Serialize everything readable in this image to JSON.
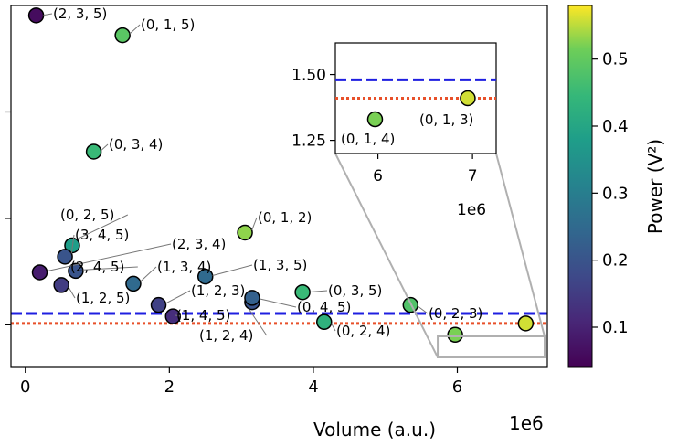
{
  "chart_data": {
    "type": "scatter",
    "xlabel": "Volume (a.u.)",
    "x_offset_text": "1e6",
    "xlim": [
      -200000,
      7250000
    ],
    "x_ticks": [
      0,
      2000000,
      4000000,
      6000000
    ],
    "x_tick_labels": [
      "0",
      "2",
      "4",
      "6"
    ],
    "ylim": [
      1.1,
      3.65
    ],
    "y_ticks": [
      1.4,
      2.15,
      2.9
    ],
    "colorbar": {
      "label": "Power (V²)",
      "range": [
        0.04,
        0.58
      ],
      "ticks": [
        0.1,
        0.2,
        0.3,
        0.4,
        0.5
      ],
      "tick_labels": [
        "0.1",
        "0.2",
        "0.3",
        "0.4",
        "0.5"
      ],
      "colormap": "viridis"
    },
    "reference_lines": [
      {
        "style": "dashed",
        "color": "#1f1fe0",
        "y": 1.48
      },
      {
        "style": "dotted",
        "color": "#e8502a",
        "y": 1.41
      }
    ],
    "points": [
      {
        "label": "(2, 3, 5)",
        "x": 150000,
        "y": 3.58,
        "power": 0.06
      },
      {
        "label": "(0, 1, 5)",
        "x": 1350000,
        "y": 3.44,
        "power": 0.49
      },
      {
        "label": "(0, 3, 4)",
        "x": 950000,
        "y": 2.62,
        "power": 0.45
      },
      {
        "label": "(0, 1, 2)",
        "x": 3050000,
        "y": 2.05,
        "power": 0.53
      },
      {
        "label": "(0, 2, 5)",
        "x": 650000,
        "y": 1.96,
        "power": 0.38
      },
      {
        "label": "(3, 4, 5)",
        "x": 550000,
        "y": 1.88,
        "power": 0.2
      },
      {
        "label": "(2, 3, 4)",
        "x": 200000,
        "y": 1.77,
        "power": 0.09
      },
      {
        "label": "(2, 4, 5)",
        "x": 700000,
        "y": 1.78,
        "power": 0.2
      },
      {
        "label": "(1, 2, 5)",
        "x": 500000,
        "y": 1.68,
        "power": 0.15
      },
      {
        "label": "(1, 3, 4)",
        "x": 1500000,
        "y": 1.69,
        "power": 0.25
      },
      {
        "label": "(1, 3, 5)",
        "x": 2500000,
        "y": 1.74,
        "power": 0.25
      },
      {
        "label": "(1, 2, 3)",
        "x": 1850000,
        "y": 1.54,
        "power": 0.16
      },
      {
        "label": "(1, 4, 5)",
        "x": 2050000,
        "y": 1.46,
        "power": 0.12
      },
      {
        "label": "(1, 2, 4)",
        "x": 3150000,
        "y": 1.56,
        "power": 0.2
      },
      {
        "label": "(0, 4, 5)",
        "x": 3150000,
        "y": 1.59,
        "power": 0.23
      },
      {
        "label": "(0, 3, 5)",
        "x": 3850000,
        "y": 1.63,
        "power": 0.45
      },
      {
        "label": "(0, 2, 4)",
        "x": 4150000,
        "y": 1.42,
        "power": 0.43
      },
      {
        "label": "(0, 2, 3)",
        "x": 5350000,
        "y": 1.54,
        "power": 0.48
      },
      {
        "label": "(0, 1, 4)",
        "x": 5970000,
        "y": 1.33,
        "power": 0.52
      },
      {
        "label": "(0, 1, 3)",
        "x": 6950000,
        "y": 1.41,
        "power": 0.56
      }
    ],
    "inset": {
      "xlim": [
        5550000,
        7250000
      ],
      "ylim": [
        1.2,
        1.62
      ],
      "x_ticks": [
        6000000,
        7000000
      ],
      "x_tick_labels": [
        "6",
        "7"
      ],
      "x_offset_text": "1e6",
      "y_ticks": [
        1.25,
        1.5
      ],
      "y_tick_labels": [
        "1.25",
        "1.50"
      ],
      "points": [
        {
          "label": "(0, 1, 4)",
          "x": 5970000,
          "y": 1.33,
          "power": 0.52
        },
        {
          "label": "(0, 1, 3)",
          "x": 6950000,
          "y": 1.41,
          "power": 0.56
        }
      ]
    }
  }
}
